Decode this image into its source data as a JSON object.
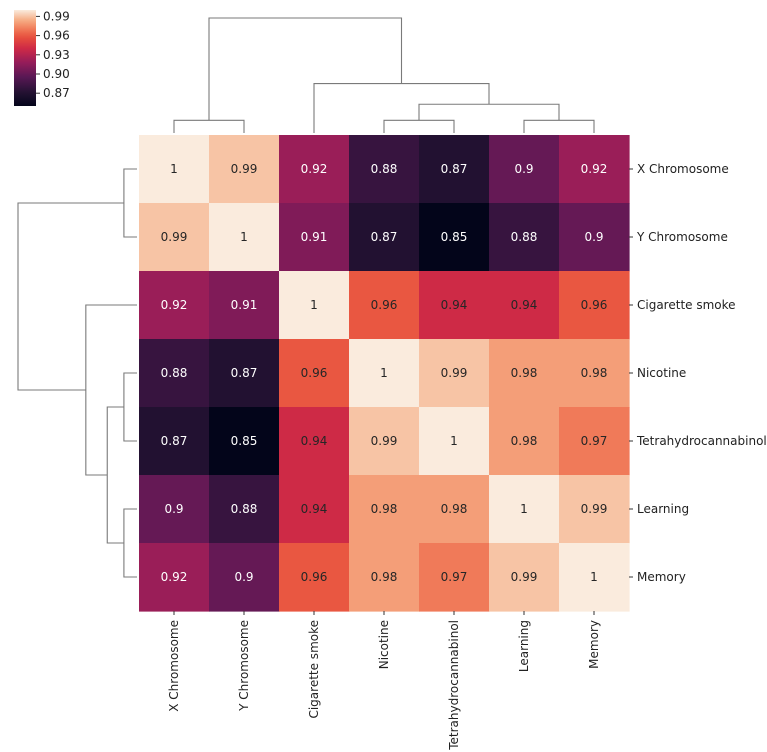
{
  "chart_data": {
    "type": "heatmap",
    "subtype": "clustermap",
    "labels": [
      "X Chromosome",
      "Y Chromosome",
      "Cigarette smoke",
      "Nicotine",
      "Tetrahydrocannabinol",
      "Learning",
      "Memory"
    ],
    "values": [
      [
        1,
        0.99,
        0.92,
        0.88,
        0.87,
        0.9,
        0.92
      ],
      [
        0.99,
        1,
        0.91,
        0.87,
        0.85,
        0.88,
        0.9
      ],
      [
        0.92,
        0.91,
        1,
        0.96,
        0.94,
        0.94,
        0.96
      ],
      [
        0.88,
        0.87,
        0.96,
        1,
        0.99,
        0.98,
        0.98
      ],
      [
        0.87,
        0.85,
        0.94,
        0.99,
        1,
        0.98,
        0.97
      ],
      [
        0.9,
        0.88,
        0.94,
        0.98,
        0.98,
        1,
        0.99
      ],
      [
        0.92,
        0.9,
        0.96,
        0.98,
        0.97,
        0.99,
        1
      ]
    ],
    "cell_labels": [
      [
        "1",
        "0.99",
        "0.92",
        "0.88",
        "0.87",
        "0.9",
        "0.92"
      ],
      [
        "0.99",
        "1",
        "0.91",
        "0.87",
        "0.85",
        "0.88",
        "0.9"
      ],
      [
        "0.92",
        "0.91",
        "1",
        "0.96",
        "0.94",
        "0.94",
        "0.96"
      ],
      [
        "0.88",
        "0.87",
        "0.96",
        "1",
        "0.99",
        "0.98",
        "0.98"
      ],
      [
        "0.87",
        "0.85",
        "0.94",
        "0.99",
        "1",
        "0.98",
        "0.97"
      ],
      [
        "0.9",
        "0.88",
        "0.94",
        "0.98",
        "0.98",
        "1",
        "0.99"
      ],
      [
        "0.92",
        "0.9",
        "0.96",
        "0.98",
        "0.97",
        "0.99",
        "1"
      ]
    ],
    "colorbar": {
      "range": [
        0.85,
        1.0
      ],
      "ticks": [
        0.99,
        0.96,
        0.93,
        0.9,
        0.87
      ],
      "tick_labels": [
        "0.99",
        "0.96",
        "0.93",
        "0.90",
        "0.87"
      ],
      "colormap": "rocket",
      "placement": "top-left"
    },
    "dendrogram": {
      "description": "hierarchical clustering merge heights (relative 0-1)",
      "merges": [
        {
          "left": [
            "X Chromosome"
          ],
          "right": [
            "Y Chromosome"
          ],
          "height": 0.11
        },
        {
          "left": [
            "Nicotine"
          ],
          "right": [
            "Tetrahydrocannabinol"
          ],
          "height": 0.11
        },
        {
          "left": [
            "Learning"
          ],
          "right": [
            "Memory"
          ],
          "height": 0.11
        },
        {
          "left": [
            "Nicotine",
            "Tetrahydrocannabinol"
          ],
          "right": [
            "Learning",
            "Memory"
          ],
          "height": 0.25
        },
        {
          "left": [
            "Cigarette smoke"
          ],
          "right": [
            "Nicotine",
            "Tetrahydrocannabinol",
            "Learning",
            "Memory"
          ],
          "height": 0.43
        },
        {
          "left": [
            "X Chromosome",
            "Y Chromosome"
          ],
          "right": [
            "Cigarette smoke",
            "Nicotine",
            "Tetrahydrocannabinol",
            "Learning",
            "Memory"
          ],
          "height": 1.0
        }
      ]
    }
  }
}
